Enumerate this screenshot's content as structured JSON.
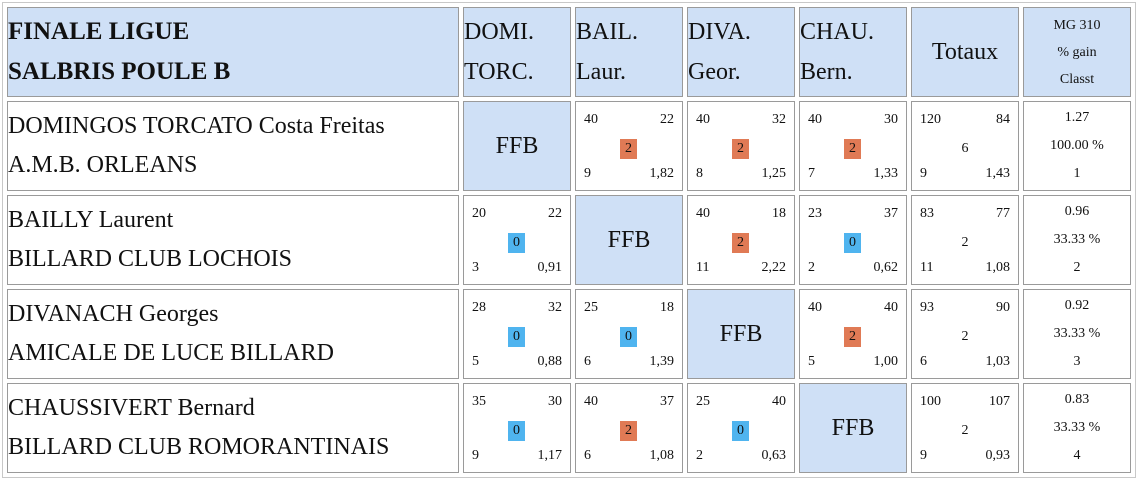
{
  "header": {
    "title_line1": "FINALE LIGUE",
    "title_line2": "SALBRIS POULE B",
    "columns": [
      {
        "line1": "DOMI.",
        "line2": "TORC."
      },
      {
        "line1": "BAIL.",
        "line2": "Laur."
      },
      {
        "line1": "DIVA.",
        "line2": "Geor."
      },
      {
        "line1": "CHAU.",
        "line2": "Bern."
      }
    ],
    "totals": "Totaux",
    "stats": [
      "MG 310",
      "% gain",
      "Classt"
    ]
  },
  "self_label": "FFB",
  "colors": {
    "header_bg": "#cfe0f6",
    "win": "#e07a55",
    "loss": "#4fb4ef"
  },
  "rows": [
    {
      "name": "DOMINGOS TORCATO Costa Freitas",
      "club": "A.M.B. ORLEANS",
      "cells": [
        null,
        {
          "tl": "40",
          "tr": "22",
          "pts": "2",
          "bl": "9",
          "br": "1,82"
        },
        {
          "tl": "40",
          "tr": "32",
          "pts": "2",
          "bl": "8",
          "br": "1,25"
        },
        {
          "tl": "40",
          "tr": "30",
          "pts": "2",
          "bl": "7",
          "br": "1,33"
        }
      ],
      "totals": {
        "tl": "120",
        "tr": "84",
        "pts": "6",
        "bl": "9",
        "br": "1,43"
      },
      "stats": [
        "1.27",
        "100.00 %",
        "1"
      ]
    },
    {
      "name": "BAILLY Laurent",
      "club": "BILLARD CLUB LOCHOIS",
      "cells": [
        {
          "tl": "20",
          "tr": "22",
          "pts": "0",
          "bl": "3",
          "br": "0,91"
        },
        null,
        {
          "tl": "40",
          "tr": "18",
          "pts": "2",
          "bl": "11",
          "br": "2,22"
        },
        {
          "tl": "23",
          "tr": "37",
          "pts": "0",
          "bl": "2",
          "br": "0,62"
        }
      ],
      "totals": {
        "tl": "83",
        "tr": "77",
        "pts": "2",
        "bl": "11",
        "br": "1,08"
      },
      "stats": [
        "0.96",
        "33.33 %",
        "2"
      ]
    },
    {
      "name": "DIVANACH Georges",
      "club": "AMICALE DE LUCE BILLARD",
      "cells": [
        {
          "tl": "28",
          "tr": "32",
          "pts": "0",
          "bl": "5",
          "br": "0,88"
        },
        {
          "tl": "25",
          "tr": "18",
          "pts": "0",
          "bl": "6",
          "br": "1,39"
        },
        null,
        {
          "tl": "40",
          "tr": "40",
          "pts": "2",
          "bl": "5",
          "br": "1,00"
        }
      ],
      "totals": {
        "tl": "93",
        "tr": "90",
        "pts": "2",
        "bl": "6",
        "br": "1,03"
      },
      "stats": [
        "0.92",
        "33.33 %",
        "3"
      ]
    },
    {
      "name": "CHAUSSIVERT Bernard",
      "club": "BILLARD CLUB ROMORANTINAIS",
      "cells": [
        {
          "tl": "35",
          "tr": "30",
          "pts": "0",
          "bl": "9",
          "br": "1,17"
        },
        {
          "tl": "40",
          "tr": "37",
          "pts": "2",
          "bl": "6",
          "br": "1,08"
        },
        {
          "tl": "25",
          "tr": "40",
          "pts": "0",
          "bl": "2",
          "br": "0,63"
        },
        null
      ],
      "totals": {
        "tl": "100",
        "tr": "107",
        "pts": "2",
        "bl": "9",
        "br": "0,93"
      },
      "stats": [
        "0.83",
        "33.33 %",
        "4"
      ]
    }
  ]
}
